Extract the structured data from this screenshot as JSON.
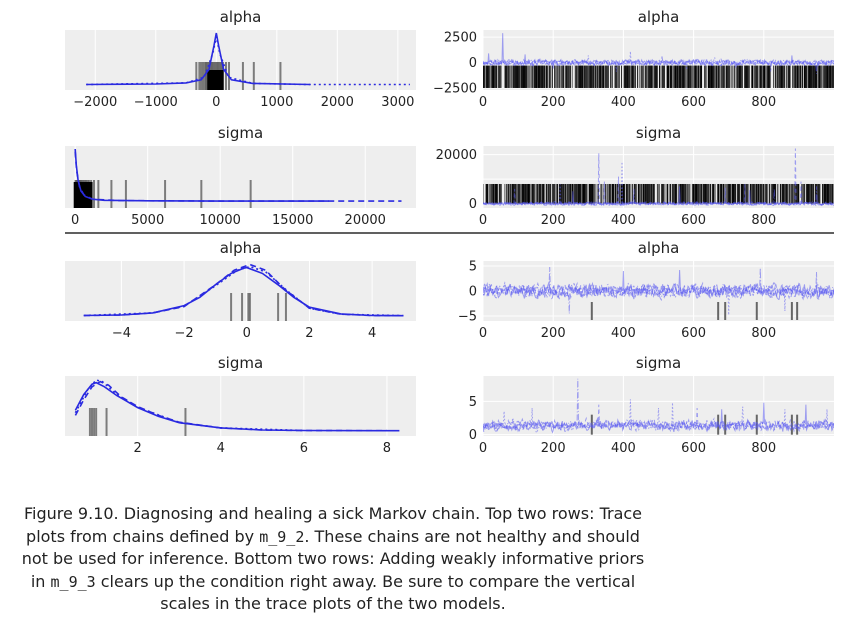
{
  "chart_data": [
    {
      "type": "area",
      "title": "alpha",
      "group": "m_9_2",
      "xlim": [
        -2500,
        3300
      ],
      "xticks": [
        -2000,
        -1000,
        0,
        1000,
        2000,
        3000
      ],
      "xtick_labels": [
        "−2000",
        "−1000",
        "0",
        "1000",
        "2000",
        "3000"
      ],
      "yticks": [],
      "series": [
        {
          "style": "solid",
          "points": [
            [
              -2150,
              0.01
            ],
            [
              -1000,
              0.02
            ],
            [
              -500,
              0.04
            ],
            [
              -250,
              0.1
            ],
            [
              -120,
              0.3
            ],
            [
              -40,
              0.75
            ],
            [
              0,
              1.0
            ],
            [
              40,
              0.75
            ],
            [
              120,
              0.3
            ],
            [
              250,
              0.1
            ],
            [
              600,
              0.03
            ],
            [
              1550,
              0.01
            ]
          ]
        },
        {
          "style": "dotted",
          "points": [
            [
              -2150,
              0.01
            ],
            [
              -500,
              0.04
            ],
            [
              -200,
              0.15
            ],
            [
              -60,
              0.6
            ],
            [
              0,
              0.93
            ],
            [
              60,
              0.6
            ],
            [
              200,
              0.15
            ],
            [
              600,
              0.03
            ],
            [
              1500,
              0.01
            ],
            [
              3200,
              0.01
            ]
          ]
        }
      ],
      "rug": [
        -330,
        -280,
        -250,
        -220,
        -190,
        -170,
        -150,
        -130,
        -110,
        -90,
        -70,
        -50,
        -30,
        -10,
        10,
        30,
        50,
        70,
        90,
        110,
        160,
        210,
        440,
        620,
        1060
      ]
    },
    {
      "type": "line",
      "title": "alpha",
      "group": "m_9_2",
      "xlim": [
        0,
        1000
      ],
      "ylim": [
        -2700,
        3200
      ],
      "xticks": [
        0,
        200,
        400,
        600,
        800
      ],
      "xtick_labels": [
        "0",
        "200",
        "400",
        "600",
        "800"
      ],
      "yticks": [
        2500,
        0,
        -2500
      ],
      "ytick_labels": [
        "2500",
        "0",
        "−2500"
      ],
      "noise_amplitude": 250,
      "spikes": [
        [
          15,
          900
        ],
        [
          55,
          2900
        ],
        [
          120,
          800
        ],
        [
          200,
          -600
        ],
        [
          300,
          700
        ],
        [
          380,
          -900
        ],
        [
          420,
          1100
        ],
        [
          510,
          600
        ],
        [
          580,
          -700
        ],
        [
          660,
          500
        ],
        [
          720,
          -500
        ],
        [
          820,
          -900
        ],
        [
          880,
          700
        ],
        [
          950,
          -1100
        ]
      ],
      "rug_density": "dense",
      "rug_band": [
        -2500,
        -300
      ]
    },
    {
      "type": "area",
      "title": "sigma",
      "group": "m_9_2",
      "xlim": [
        -700,
        23500
      ],
      "xticks": [
        0,
        5000,
        10000,
        15000,
        20000
      ],
      "xtick_labels": [
        "0",
        "5000",
        "10000",
        "15000",
        "20000"
      ],
      "yticks": [],
      "series": [
        {
          "style": "solid",
          "points": [
            [
              0,
              1.0
            ],
            [
              80,
              0.7
            ],
            [
              200,
              0.42
            ],
            [
              400,
              0.22
            ],
            [
              700,
              0.12
            ],
            [
              1200,
              0.07
            ],
            [
              2000,
              0.05
            ],
            [
              5000,
              0.04
            ],
            [
              10000,
              0.035
            ],
            [
              17500,
              0.035
            ]
          ]
        },
        {
          "style": "dashed",
          "points": [
            [
              0,
              0.95
            ],
            [
              100,
              0.6
            ],
            [
              300,
              0.3
            ],
            [
              600,
              0.15
            ],
            [
              1200,
              0.07
            ],
            [
              3000,
              0.045
            ],
            [
              10000,
              0.035
            ],
            [
              22500,
              0.035
            ]
          ]
        }
      ],
      "rug": [
        30,
        80,
        130,
        180,
        240,
        300,
        360,
        420,
        500,
        580,
        660,
        750,
        850,
        950,
        1100,
        1300,
        1600,
        2500,
        3500,
        6200,
        8700,
        12100
      ]
    },
    {
      "type": "line",
      "title": "sigma",
      "group": "m_9_2",
      "xlim": [
        0,
        1000
      ],
      "ylim": [
        -1800,
        23500
      ],
      "xticks": [
        0,
        200,
        400,
        600,
        800
      ],
      "xtick_labels": [
        "0",
        "200",
        "400",
        "600",
        "800"
      ],
      "yticks": [
        20000,
        10000,
        0
      ],
      "ytick_labels": [
        "20000",
        "",
        "0"
      ],
      "noise_amplitude": 600,
      "spikes": [
        [
          90,
          6000
        ],
        [
          220,
          8000
        ],
        [
          255,
          5000
        ],
        [
          330,
          20500
        ],
        [
          345,
          9000
        ],
        [
          385,
          11000
        ],
        [
          395,
          17000
        ],
        [
          430,
          6000
        ],
        [
          560,
          7000
        ],
        [
          690,
          6500
        ],
        [
          745,
          8000
        ],
        [
          760,
          5500
        ],
        [
          830,
          6000
        ],
        [
          890,
          22500
        ],
        [
          905,
          9000
        ],
        [
          950,
          7000
        ]
      ],
      "rug_density": "dense",
      "rug_band": [
        0,
        8000
      ]
    },
    {
      "type": "area",
      "title": "alpha",
      "group": "m_9_3",
      "xlim": [
        -5.8,
        5.4
      ],
      "xticks": [
        -4,
        -2,
        0,
        2,
        4
      ],
      "xtick_labels": [
        "−4",
        "−2",
        "0",
        "2",
        "4"
      ],
      "yticks": [],
      "series": [
        {
          "style": "solid",
          "points": [
            [
              -5.2,
              0.01
            ],
            [
              -4,
              0.02
            ],
            [
              -3,
              0.06
            ],
            [
              -2,
              0.2
            ],
            [
              -1.5,
              0.36
            ],
            [
              -1,
              0.6
            ],
            [
              -0.5,
              0.82
            ],
            [
              -0.1,
              0.92
            ],
            [
              0,
              0.93
            ],
            [
              0.5,
              0.82
            ],
            [
              1,
              0.6
            ],
            [
              1.5,
              0.36
            ],
            [
              2,
              0.17
            ],
            [
              3,
              0.04
            ],
            [
              4,
              0.01
            ],
            [
              5,
              0.005
            ]
          ]
        },
        {
          "style": "dashed",
          "points": [
            [
              -5.2,
              0.01
            ],
            [
              -4,
              0.02
            ],
            [
              -3,
              0.06
            ],
            [
              -2,
              0.18
            ],
            [
              -1,
              0.6
            ],
            [
              -0.4,
              0.88
            ],
            [
              0.1,
              0.99
            ],
            [
              0.6,
              0.88
            ],
            [
              1.2,
              0.52
            ],
            [
              2,
              0.15
            ],
            [
              3,
              0.035
            ],
            [
              4,
              0.01
            ],
            [
              5,
              0.005
            ]
          ]
        },
        {
          "style": "dotted",
          "points": [
            [
              -5.2,
              0.01
            ],
            [
              -3,
              0.06
            ],
            [
              -2,
              0.19
            ],
            [
              -1,
              0.58
            ],
            [
              -0.3,
              0.88
            ],
            [
              0.1,
              0.95
            ],
            [
              0.6,
              0.85
            ],
            [
              1.3,
              0.48
            ],
            [
              2,
              0.15
            ],
            [
              3,
              0.035
            ],
            [
              5,
              0.005
            ]
          ]
        }
      ],
      "rug": [
        -0.5,
        -0.15,
        0.05,
        0.1,
        1.0,
        1.25
      ]
    },
    {
      "type": "line",
      "title": "alpha",
      "group": "m_9_3",
      "xlim": [
        0,
        1000
      ],
      "ylim": [
        -6,
        6
      ],
      "xticks": [
        0,
        200,
        400,
        600,
        800
      ],
      "xtick_labels": [
        "0",
        "200",
        "400",
        "600",
        "800"
      ],
      "yticks": [
        5,
        0,
        -5
      ],
      "ytick_labels": [
        "5",
        "0",
        "−5"
      ],
      "noise_amplitude": 1.3,
      "spikes": [
        [
          190,
          4.8
        ],
        [
          245,
          -4.5
        ],
        [
          400,
          4.0
        ],
        [
          560,
          4.2
        ],
        [
          700,
          -4.8
        ],
        [
          790,
          4.6
        ],
        [
          860,
          -4.0
        ],
        [
          950,
          3.8
        ]
      ],
      "rug": [
        310,
        670,
        690,
        780,
        880,
        895
      ],
      "rug_band": [
        -5.8,
        -2.2
      ]
    },
    {
      "type": "area",
      "title": "sigma",
      "group": "m_9_3",
      "xlim": [
        0.25,
        8.7
      ],
      "xticks": [
        2,
        4,
        6,
        8
      ],
      "xtick_labels": [
        "2",
        "4",
        "6",
        "8"
      ],
      "yticks": [],
      "series": [
        {
          "style": "solid",
          "points": [
            [
              0.5,
              0.4
            ],
            [
              0.7,
              0.7
            ],
            [
              0.9,
              0.9
            ],
            [
              1.0,
              0.93
            ],
            [
              1.2,
              0.85
            ],
            [
              1.5,
              0.68
            ],
            [
              2,
              0.45
            ],
            [
              2.5,
              0.28
            ],
            [
              3,
              0.16
            ],
            [
              4,
              0.06
            ],
            [
              5,
              0.02
            ],
            [
              6,
              0.01
            ],
            [
              8.3,
              0.005
            ]
          ]
        },
        {
          "style": "dashed",
          "points": [
            [
              0.5,
              0.3
            ],
            [
              0.7,
              0.6
            ],
            [
              0.9,
              0.85
            ],
            [
              1.1,
              0.95
            ],
            [
              1.3,
              0.88
            ],
            [
              1.6,
              0.66
            ],
            [
              2,
              0.47
            ],
            [
              2.5,
              0.3
            ],
            [
              3,
              0.17
            ],
            [
              4,
              0.06
            ],
            [
              5,
              0.02
            ],
            [
              6,
              0.01
            ],
            [
              8,
              0.005
            ]
          ]
        },
        {
          "style": "dotted",
          "points": [
            [
              0.5,
              0.35
            ],
            [
              0.8,
              0.8
            ],
            [
              1.0,
              0.98
            ],
            [
              1.15,
              0.95
            ],
            [
              1.5,
              0.7
            ],
            [
              2,
              0.46
            ],
            [
              3,
              0.16
            ],
            [
              4,
              0.06
            ],
            [
              6,
              0.01
            ]
          ]
        }
      ],
      "rug": [
        0.85,
        0.9,
        0.95,
        1.0,
        1.25,
        3.15
      ]
    },
    {
      "type": "line",
      "title": "sigma",
      "group": "m_9_3",
      "xlim": [
        0,
        1000
      ],
      "ylim": [
        -0.2,
        8.8
      ],
      "xticks": [
        0,
        200,
        400,
        600,
        800
      ],
      "xtick_labels": [
        "0",
        "200",
        "400",
        "600",
        "800"
      ],
      "yticks": [
        5,
        0
      ],
      "ytick_labels": [
        "5",
        "0"
      ],
      "baseline": 1.4,
      "noise_amplitude": 1.0,
      "spikes": [
        [
          60,
          3.5
        ],
        [
          140,
          4.0
        ],
        [
          270,
          8.4
        ],
        [
          330,
          4.5
        ],
        [
          420,
          5.3
        ],
        [
          500,
          4.0
        ],
        [
          540,
          4.8
        ],
        [
          610,
          4.0
        ],
        [
          680,
          3.8
        ],
        [
          740,
          4.2
        ],
        [
          800,
          4.8
        ],
        [
          860,
          3.8
        ],
        [
          920,
          4.5
        ],
        [
          980,
          3.8
        ]
      ],
      "rug": [
        310,
        670,
        690,
        780,
        880,
        895
      ],
      "rug_band": [
        0,
        3
      ]
    }
  ],
  "caption": {
    "p1": "Figure 9.10. Diagnosing and healing a sick Markov chain. Top two rows: Trace plots from chains defined by ",
    "code1": "m_9_2",
    "p2": ". These chains are not healthy and should not be used for inference. Bottom two rows: Adding weakly informative priors in ",
    "code2": "m_9_3",
    "p3": " clears up the condition right away. Be sure to compare the vertical scales in the trace plots of the two models."
  },
  "colors": {
    "line": "#2a2ae0",
    "trace": "#5a5af0",
    "rug": "#000000",
    "panel": "#eeeeee",
    "separator": "#000000"
  }
}
